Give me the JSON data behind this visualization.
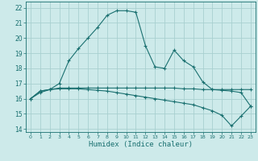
{
  "xlabel": "Humidex (Indice chaleur)",
  "background_color": "#cdeaea",
  "grid_color": "#a8d0d0",
  "line_color": "#1a7070",
  "xlim": [
    -0.5,
    23.5
  ],
  "ylim": [
    13.8,
    22.4
  ],
  "xticks": [
    0,
    1,
    2,
    3,
    4,
    5,
    6,
    7,
    8,
    9,
    10,
    11,
    12,
    13,
    14,
    15,
    16,
    17,
    18,
    19,
    20,
    21,
    22,
    23
  ],
  "yticks": [
    14,
    15,
    16,
    17,
    18,
    19,
    20,
    21,
    22
  ],
  "line1_x": [
    0,
    1,
    2,
    3,
    4,
    5,
    6,
    7,
    8,
    9,
    10,
    11,
    12,
    13,
    14,
    15,
    16,
    17,
    18,
    19,
    20,
    21,
    22,
    23
  ],
  "line1_y": [
    16.0,
    16.5,
    16.6,
    17.0,
    18.5,
    19.3,
    20.0,
    20.7,
    21.5,
    21.8,
    21.8,
    21.7,
    19.5,
    18.1,
    18.0,
    19.2,
    18.5,
    18.1,
    17.1,
    16.6,
    16.6,
    16.6,
    16.6,
    16.6
  ],
  "line2_x": [
    0,
    1,
    2,
    3,
    4,
    5,
    6,
    7,
    8,
    9,
    10,
    11,
    12,
    13,
    14,
    15,
    16,
    17,
    18,
    19,
    20,
    21,
    22,
    23
  ],
  "line2_y": [
    16.0,
    16.4,
    16.6,
    16.65,
    16.65,
    16.65,
    16.6,
    16.55,
    16.5,
    16.4,
    16.3,
    16.2,
    16.1,
    16.0,
    15.9,
    15.8,
    15.7,
    15.6,
    15.4,
    15.2,
    14.9,
    14.2,
    14.85,
    15.5
  ],
  "line3_x": [
    0,
    1,
    2,
    3,
    4,
    5,
    6,
    7,
    8,
    9,
    10,
    11,
    12,
    13,
    14,
    15,
    16,
    17,
    18,
    19,
    20,
    21,
    22,
    23
  ],
  "line3_y": [
    16.0,
    16.5,
    16.6,
    16.7,
    16.7,
    16.7,
    16.7,
    16.7,
    16.7,
    16.7,
    16.7,
    16.7,
    16.7,
    16.7,
    16.7,
    16.7,
    16.65,
    16.65,
    16.6,
    16.6,
    16.55,
    16.5,
    16.4,
    15.5
  ]
}
